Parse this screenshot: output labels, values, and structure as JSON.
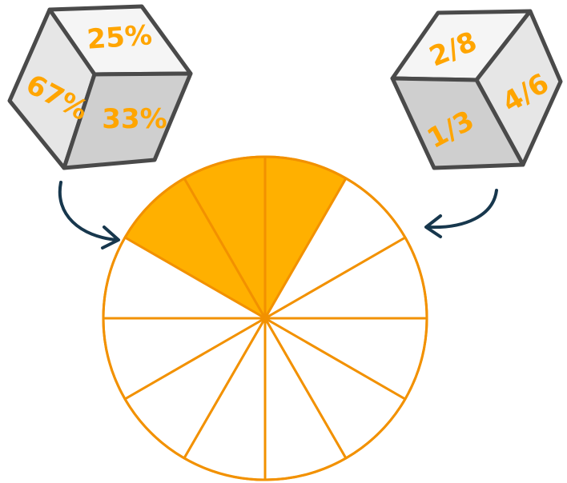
{
  "colors": {
    "accent": "#FFA500",
    "wheel_fill": "#FFB000",
    "wheel_stroke": "#F29100",
    "cube_outline": "#4A4A4A",
    "cube_top": "#F5F5F5",
    "cube_light": "#E6E6E6",
    "cube_dark": "#CFCFCF",
    "arrow": "#17374D"
  },
  "left_cube": {
    "faces": [
      {
        "label": "25%"
      },
      {
        "label": "67%"
      },
      {
        "label": "33%"
      }
    ]
  },
  "right_cube": {
    "faces": [
      {
        "label": "2/8"
      },
      {
        "label": "4/6"
      },
      {
        "label": "1/3"
      }
    ]
  },
  "wheel": {
    "total_slices": 12,
    "shaded_slices": 3
  }
}
